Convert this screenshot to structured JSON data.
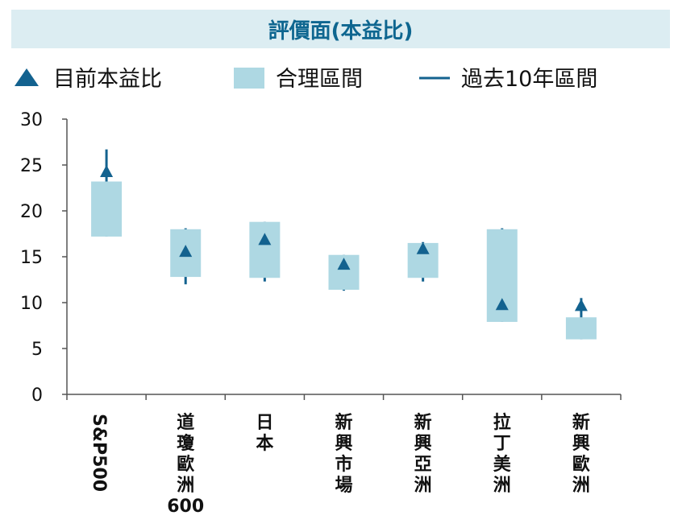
{
  "chart_data": {
    "type": "box-range",
    "title": "評價面(本益比)",
    "legend": [
      {
        "label": "目前本益比",
        "marker": "triangle"
      },
      {
        "label": "合理區間",
        "marker": "box"
      },
      {
        "label": "過去10年區間",
        "marker": "line"
      }
    ],
    "legend_position": "top",
    "ylim": [
      0,
      30
    ],
    "yticks": [
      0,
      5,
      10,
      15,
      20,
      25,
      30
    ],
    "grid": false,
    "categories": [
      "S&P500",
      "道瓊歐洲600",
      "日本",
      "新興市場",
      "新興亞洲",
      "拉丁美洲",
      "新興歐洲"
    ],
    "series": [
      {
        "name": "目前本益比",
        "values": [
          24.3,
          15.6,
          16.9,
          14.2,
          15.9,
          9.8,
          9.7
        ]
      },
      {
        "name": "合理區間",
        "low": [
          17.2,
          12.8,
          12.7,
          11.4,
          12.7,
          7.9,
          6.0
        ],
        "high": [
          23.2,
          18.0,
          18.8,
          15.2,
          16.5,
          18.0,
          8.4
        ]
      },
      {
        "name": "過去10年區間",
        "low": [
          17.2,
          12.0,
          12.3,
          11.3,
          12.3,
          7.9,
          6.0
        ],
        "high": [
          26.7,
          18.1,
          18.8,
          15.2,
          16.6,
          18.1,
          10.5
        ]
      }
    ]
  },
  "colors": {
    "box": "#aed8e3",
    "marker": "#13628f",
    "axis": "#555555",
    "title_bg": "#dcedf2",
    "title_text": "#0e6690"
  }
}
